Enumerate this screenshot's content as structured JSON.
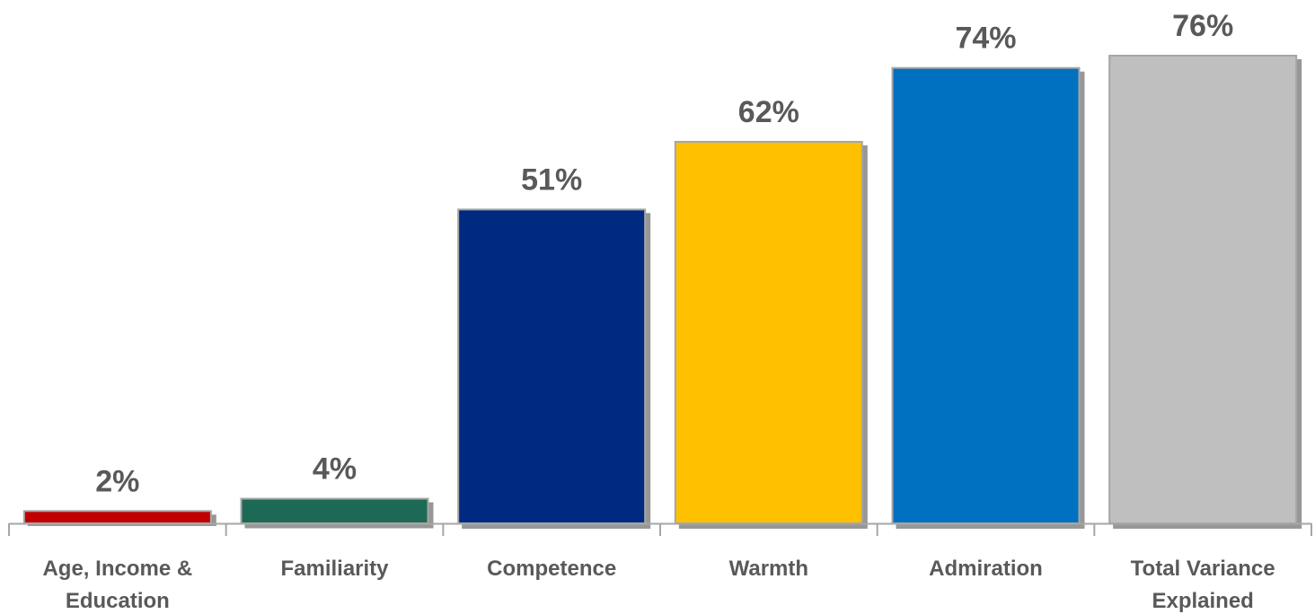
{
  "chart_data": {
    "type": "bar",
    "categories": [
      [
        "Age, Income &",
        "Education"
      ],
      [
        "Familiarity"
      ],
      [
        "Competence"
      ],
      [
        "Warmth"
      ],
      [
        "Admiration"
      ],
      [
        "Total Variance",
        "Explained"
      ]
    ],
    "values": [
      2,
      4,
      51,
      62,
      74,
      76
    ],
    "data_labels": [
      "2%",
      "4%",
      "51%",
      "62%",
      "74%",
      "76%"
    ],
    "colors": [
      "#C00000",
      "#1A6B55",
      "#002B82",
      "#FFC000",
      "#0070C0",
      "#BFBFBF"
    ],
    "ylim": [
      0,
      76
    ],
    "grid": false,
    "legend": "none"
  }
}
